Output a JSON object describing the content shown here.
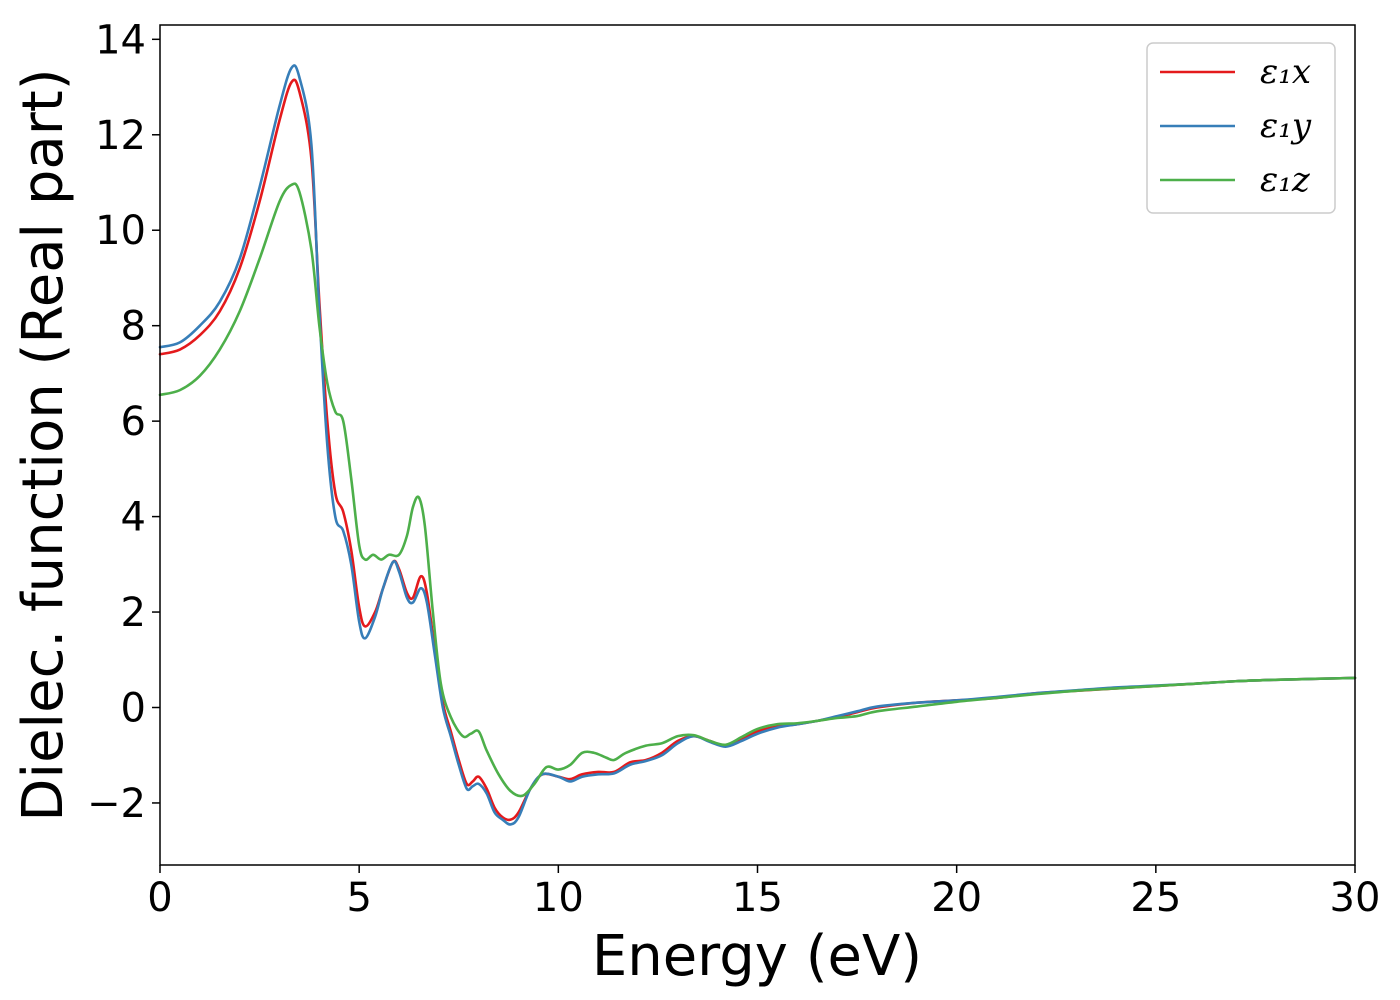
{
  "chart_data": {
    "type": "line",
    "xlabel": "Energy (eV)",
    "ylabel": "Dielec. function (Real part)",
    "xlim": [
      0,
      30
    ],
    "ylim": [
      -3.3,
      14.3
    ],
    "xticks": [
      0,
      5,
      10,
      15,
      20,
      25,
      30
    ],
    "xtick_labels": [
      "0",
      "5",
      "10",
      "15",
      "20",
      "25",
      "30"
    ],
    "yticks": [
      -2,
      0,
      2,
      4,
      6,
      8,
      10,
      12,
      14
    ],
    "ytick_labels": [
      "−2",
      "0",
      "2",
      "4",
      "6",
      "8",
      "10",
      "12",
      "14"
    ],
    "grid": false,
    "legend_position": "top-right",
    "series": [
      {
        "name": "ε₁x",
        "color": "#e41a1c",
        "points": [
          [
            0,
            7.4
          ],
          [
            0.5,
            7.5
          ],
          [
            1,
            7.8
          ],
          [
            1.5,
            8.3
          ],
          [
            2,
            9.2
          ],
          [
            2.5,
            10.6
          ],
          [
            3,
            12.3
          ],
          [
            3.3,
            13.1
          ],
          [
            3.5,
            12.9
          ],
          [
            3.8,
            11.5
          ],
          [
            4.0,
            8.5
          ],
          [
            4.2,
            6.0
          ],
          [
            4.4,
            4.5
          ],
          [
            4.6,
            4.1
          ],
          [
            4.8,
            3.3
          ],
          [
            5.0,
            2.1
          ],
          [
            5.15,
            1.7
          ],
          [
            5.4,
            2.0
          ],
          [
            5.6,
            2.5
          ],
          [
            5.85,
            3.05
          ],
          [
            6.0,
            2.9
          ],
          [
            6.2,
            2.4
          ],
          [
            6.35,
            2.3
          ],
          [
            6.55,
            2.75
          ],
          [
            6.7,
            2.4
          ],
          [
            6.9,
            1.2
          ],
          [
            7.1,
            0.1
          ],
          [
            7.3,
            -0.5
          ],
          [
            7.5,
            -1.1
          ],
          [
            7.7,
            -1.6
          ],
          [
            7.85,
            -1.55
          ],
          [
            8.0,
            -1.45
          ],
          [
            8.2,
            -1.7
          ],
          [
            8.4,
            -2.1
          ],
          [
            8.6,
            -2.3
          ],
          [
            8.8,
            -2.35
          ],
          [
            9.0,
            -2.2
          ],
          [
            9.3,
            -1.7
          ],
          [
            9.6,
            -1.4
          ],
          [
            10.0,
            -1.45
          ],
          [
            10.3,
            -1.5
          ],
          [
            10.6,
            -1.4
          ],
          [
            11.0,
            -1.35
          ],
          [
            11.4,
            -1.35
          ],
          [
            11.8,
            -1.15
          ],
          [
            12.2,
            -1.1
          ],
          [
            12.6,
            -0.95
          ],
          [
            13.0,
            -0.7
          ],
          [
            13.4,
            -0.6
          ],
          [
            13.8,
            -0.7
          ],
          [
            14.2,
            -0.8
          ],
          [
            14.6,
            -0.65
          ],
          [
            15.0,
            -0.5
          ],
          [
            15.5,
            -0.4
          ],
          [
            16.0,
            -0.35
          ],
          [
            16.5,
            -0.28
          ],
          [
            17.0,
            -0.2
          ],
          [
            17.5,
            -0.1
          ],
          [
            18.0,
            0.0
          ],
          [
            19.0,
            0.1
          ],
          [
            20.0,
            0.15
          ],
          [
            21.0,
            0.2
          ],
          [
            22.0,
            0.3
          ],
          [
            23.0,
            0.35
          ],
          [
            24.0,
            0.4
          ],
          [
            25.0,
            0.45
          ],
          [
            26.0,
            0.5
          ],
          [
            27.0,
            0.55
          ],
          [
            28.0,
            0.58
          ],
          [
            29.0,
            0.6
          ],
          [
            30.0,
            0.62
          ]
        ]
      },
      {
        "name": "ε₁y",
        "color": "#377eb8",
        "points": [
          [
            0,
            7.55
          ],
          [
            0.5,
            7.65
          ],
          [
            1,
            8.0
          ],
          [
            1.5,
            8.5
          ],
          [
            2,
            9.4
          ],
          [
            2.5,
            10.9
          ],
          [
            3,
            12.6
          ],
          [
            3.3,
            13.4
          ],
          [
            3.5,
            13.2
          ],
          [
            3.8,
            11.8
          ],
          [
            4.0,
            8.3
          ],
          [
            4.2,
            5.5
          ],
          [
            4.4,
            4.0
          ],
          [
            4.6,
            3.7
          ],
          [
            4.8,
            3.0
          ],
          [
            5.0,
            1.8
          ],
          [
            5.15,
            1.45
          ],
          [
            5.4,
            1.9
          ],
          [
            5.6,
            2.5
          ],
          [
            5.85,
            3.05
          ],
          [
            6.0,
            2.85
          ],
          [
            6.2,
            2.3
          ],
          [
            6.35,
            2.2
          ],
          [
            6.55,
            2.5
          ],
          [
            6.7,
            2.2
          ],
          [
            6.9,
            1.1
          ],
          [
            7.1,
            0.0
          ],
          [
            7.3,
            -0.6
          ],
          [
            7.5,
            -1.2
          ],
          [
            7.7,
            -1.7
          ],
          [
            7.85,
            -1.65
          ],
          [
            8.0,
            -1.6
          ],
          [
            8.2,
            -1.8
          ],
          [
            8.4,
            -2.2
          ],
          [
            8.6,
            -2.35
          ],
          [
            8.8,
            -2.45
          ],
          [
            9.0,
            -2.3
          ],
          [
            9.3,
            -1.7
          ],
          [
            9.6,
            -1.4
          ],
          [
            10.0,
            -1.45
          ],
          [
            10.3,
            -1.55
          ],
          [
            10.6,
            -1.45
          ],
          [
            11.0,
            -1.4
          ],
          [
            11.4,
            -1.38
          ],
          [
            11.8,
            -1.2
          ],
          [
            12.2,
            -1.12
          ],
          [
            12.6,
            -1.0
          ],
          [
            13.0,
            -0.75
          ],
          [
            13.4,
            -0.6
          ],
          [
            13.8,
            -0.72
          ],
          [
            14.2,
            -0.82
          ],
          [
            14.6,
            -0.7
          ],
          [
            15.0,
            -0.55
          ],
          [
            15.5,
            -0.42
          ],
          [
            16.0,
            -0.35
          ],
          [
            16.5,
            -0.28
          ],
          [
            17.0,
            -0.18
          ],
          [
            17.5,
            -0.08
          ],
          [
            18.0,
            0.02
          ],
          [
            19.0,
            0.1
          ],
          [
            20.0,
            0.15
          ],
          [
            21.0,
            0.22
          ],
          [
            22.0,
            0.3
          ],
          [
            23.0,
            0.36
          ],
          [
            24.0,
            0.42
          ],
          [
            25.0,
            0.46
          ],
          [
            26.0,
            0.5
          ],
          [
            27.0,
            0.55
          ],
          [
            28.0,
            0.58
          ],
          [
            29.0,
            0.6
          ],
          [
            30.0,
            0.62
          ]
        ]
      },
      {
        "name": "ε₁z",
        "color": "#4daf4a",
        "points": [
          [
            0,
            6.55
          ],
          [
            0.5,
            6.65
          ],
          [
            1,
            6.95
          ],
          [
            1.5,
            7.5
          ],
          [
            2,
            8.3
          ],
          [
            2.5,
            9.4
          ],
          [
            3,
            10.6
          ],
          [
            3.3,
            10.95
          ],
          [
            3.5,
            10.8
          ],
          [
            3.8,
            9.6
          ],
          [
            4.0,
            8.0
          ],
          [
            4.2,
            6.8
          ],
          [
            4.4,
            6.2
          ],
          [
            4.6,
            6.0
          ],
          [
            4.8,
            4.8
          ],
          [
            5.0,
            3.4
          ],
          [
            5.15,
            3.1
          ],
          [
            5.35,
            3.2
          ],
          [
            5.55,
            3.1
          ],
          [
            5.75,
            3.2
          ],
          [
            6.0,
            3.2
          ],
          [
            6.2,
            3.6
          ],
          [
            6.35,
            4.2
          ],
          [
            6.5,
            4.4
          ],
          [
            6.65,
            3.8
          ],
          [
            6.85,
            2.0
          ],
          [
            7.05,
            0.5
          ],
          [
            7.3,
            -0.2
          ],
          [
            7.6,
            -0.6
          ],
          [
            7.8,
            -0.55
          ],
          [
            8.0,
            -0.5
          ],
          [
            8.2,
            -0.9
          ],
          [
            8.5,
            -1.4
          ],
          [
            8.8,
            -1.75
          ],
          [
            9.1,
            -1.85
          ],
          [
            9.4,
            -1.6
          ],
          [
            9.7,
            -1.25
          ],
          [
            10.0,
            -1.3
          ],
          [
            10.3,
            -1.2
          ],
          [
            10.6,
            -0.95
          ],
          [
            10.9,
            -0.95
          ],
          [
            11.2,
            -1.05
          ],
          [
            11.4,
            -1.1
          ],
          [
            11.7,
            -0.95
          ],
          [
            12.2,
            -0.8
          ],
          [
            12.6,
            -0.75
          ],
          [
            13.0,
            -0.6
          ],
          [
            13.4,
            -0.58
          ],
          [
            13.8,
            -0.7
          ],
          [
            14.2,
            -0.78
          ],
          [
            14.6,
            -0.62
          ],
          [
            15.0,
            -0.45
          ],
          [
            15.5,
            -0.35
          ],
          [
            16.0,
            -0.33
          ],
          [
            16.5,
            -0.28
          ],
          [
            17.0,
            -0.22
          ],
          [
            17.5,
            -0.18
          ],
          [
            18.0,
            -0.08
          ],
          [
            19.0,
            0.02
          ],
          [
            20.0,
            0.12
          ],
          [
            21.0,
            0.2
          ],
          [
            22.0,
            0.28
          ],
          [
            23.0,
            0.35
          ],
          [
            24.0,
            0.4
          ],
          [
            25.0,
            0.45
          ],
          [
            26.0,
            0.5
          ],
          [
            27.0,
            0.55
          ],
          [
            28.0,
            0.58
          ],
          [
            29.0,
            0.6
          ],
          [
            30.0,
            0.62
          ]
        ]
      }
    ]
  }
}
